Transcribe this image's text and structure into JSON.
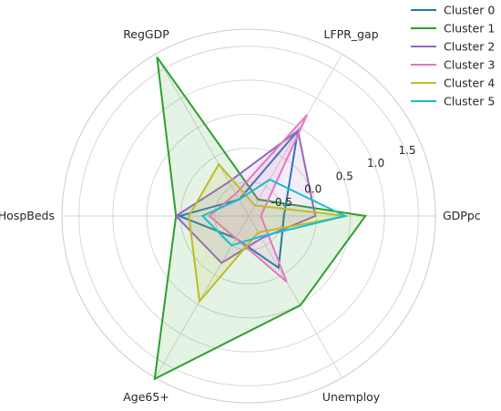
{
  "chart_data": {
    "type": "radar",
    "axes": [
      "GDPpc",
      "LFPR_gap",
      "RegGDP",
      "HospBeds",
      "Age65+",
      "Unemploy"
    ],
    "rlim": [
      -1.0,
      1.75
    ],
    "rticks": [
      {
        "value": -0.5,
        "label": "-0.5"
      },
      {
        "value": 0.0,
        "label": "0.0"
      },
      {
        "value": 0.5,
        "label": "0.5"
      },
      {
        "value": 1.0,
        "label": "1.0"
      },
      {
        "value": 1.5,
        "label": "1.5"
      }
    ],
    "grid": true,
    "legend_position": "top-right",
    "series": [
      {
        "name": "Cluster 0",
        "color": "#1f77b4",
        "fill": false,
        "values": [
          -0.48,
          0.45,
          -0.72,
          0.02,
          -0.62,
          -0.12
        ]
      },
      {
        "name": "Cluster 1",
        "color": "#2ca02c",
        "fill": true,
        "values": [
          0.72,
          -0.72,
          1.7,
          0.07,
          1.77,
          0.52
        ]
      },
      {
        "name": "Cluster 2",
        "color": "#9467bd",
        "fill": true,
        "values": [
          -0.02,
          0.45,
          -0.42,
          0.07,
          -0.2,
          -0.62
        ]
      },
      {
        "name": "Cluster 3",
        "color": "#e377c2",
        "fill": true,
        "values": [
          -0.82,
          0.72,
          -0.62,
          -0.42,
          -0.62,
          0.12
        ]
      },
      {
        "name": "Cluster 4",
        "color": "#bcbd22",
        "fill": true,
        "values": [
          0.45,
          -0.82,
          -0.12,
          -0.12,
          0.45,
          -0.72
        ]
      },
      {
        "name": "Cluster 5",
        "color": "#17becf",
        "fill": false,
        "values": [
          0.42,
          -0.38,
          -0.72,
          -0.32,
          -0.5,
          -0.65
        ]
      }
    ]
  }
}
